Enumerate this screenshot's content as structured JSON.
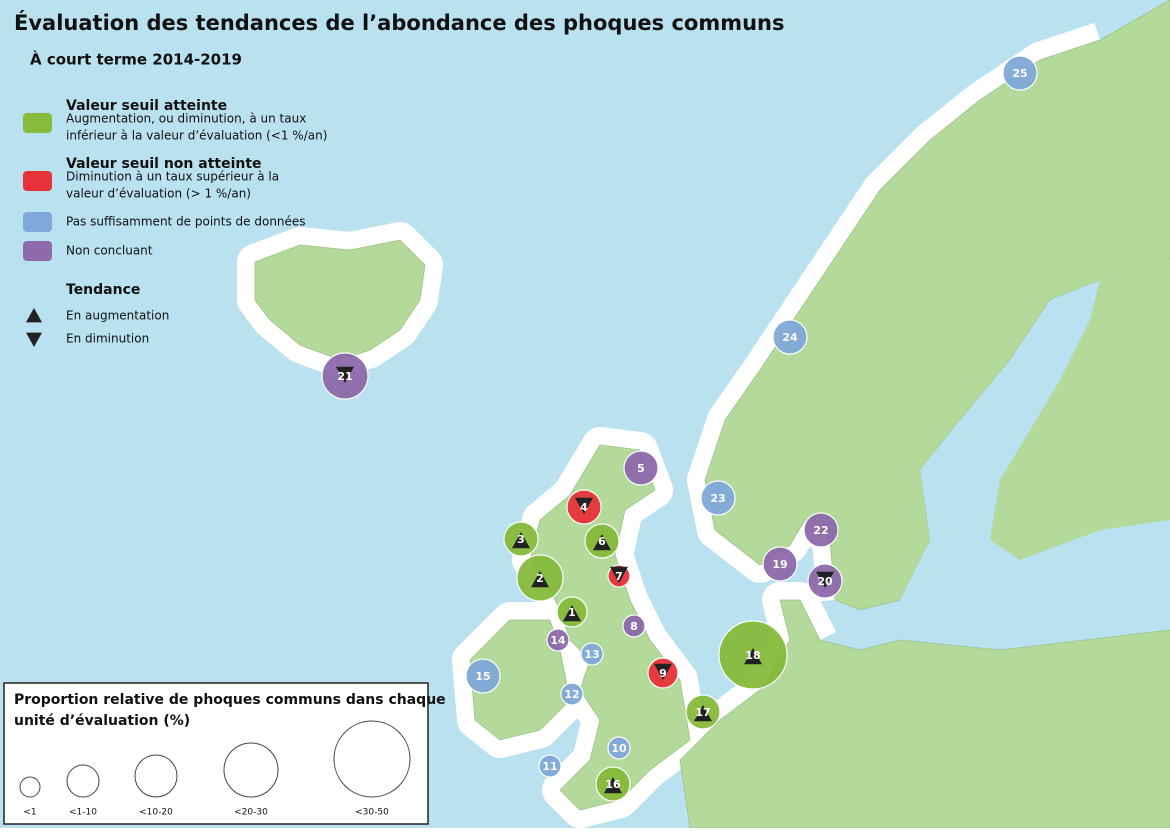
{
  "header": {
    "title": "Évaluation des tendances de l’abondance des phoques communs",
    "subtitle": "À court terme 2014-2019"
  },
  "legend": {
    "categories": [
      {
        "title": "Valeur seuil atteinte",
        "description": [
          "Augmentation, ou diminution, à un taux",
          "inférieur à la valeur d’évaluation (<1 %/an)"
        ],
        "color": "#86bb3c"
      },
      {
        "title": "Valeur seuil non atteinte",
        "description": [
          "Diminution à un taux supérieur à la",
          "valeur d’évaluation (> 1 %/an)"
        ],
        "color": "#e8323a"
      },
      {
        "title": null,
        "description": [
          "Pas suffisamment de points de données"
        ],
        "color": "#80a9d9"
      },
      {
        "title": null,
        "description": [
          "Non concluant"
        ],
        "color": "#8d6aaa"
      }
    ],
    "trend_title": "Tendance",
    "trends": [
      "En augmentation",
      "En diminution"
    ]
  },
  "size_legend": {
    "title": [
      "Proportion relative de phoques communs dans chaque",
      "unité d’évaluation (%)"
    ],
    "sizes": [
      "<1",
      "<1-10",
      "<10-20",
      "<20-30",
      "<30-50"
    ]
  },
  "units": [
    {
      "label": "1",
      "category": 0,
      "trend": 0,
      "size": 1
    },
    {
      "label": "2",
      "category": 0,
      "trend": 0,
      "size": 3
    },
    {
      "label": "3",
      "category": 0,
      "trend": 0,
      "size": 2
    },
    {
      "label": "4",
      "category": 1,
      "trend": 1,
      "size": 2
    },
    {
      "label": "5",
      "category": 3,
      "trend": null,
      "size": 2
    },
    {
      "label": "6",
      "category": 0,
      "trend": 0,
      "size": 2
    },
    {
      "label": "7",
      "category": 1,
      "trend": 1,
      "size": 0
    },
    {
      "label": "8",
      "category": 3,
      "trend": null,
      "size": 0
    },
    {
      "label": "9",
      "category": 1,
      "trend": 1,
      "size": 1
    },
    {
      "label": "10",
      "category": 2,
      "trend": null,
      "size": 0
    },
    {
      "label": "11",
      "category": 2,
      "trend": null,
      "size": 0
    },
    {
      "label": "12",
      "category": 2,
      "trend": null,
      "size": 0
    },
    {
      "label": "13",
      "category": 2,
      "trend": null,
      "size": 0
    },
    {
      "label": "14",
      "category": 3,
      "trend": null,
      "size": 0
    },
    {
      "label": "15",
      "category": 2,
      "trend": null,
      "size": 2
    },
    {
      "label": "16",
      "category": 0,
      "trend": 0,
      "size": 2
    },
    {
      "label": "17",
      "category": 0,
      "trend": 0,
      "size": 2
    },
    {
      "label": "18",
      "category": 0,
      "trend": 0,
      "size": 4
    },
    {
      "label": "19",
      "category": 3,
      "trend": null,
      "size": 2
    },
    {
      "label": "20",
      "category": 3,
      "trend": 1,
      "size": 2
    },
    {
      "label": "21",
      "category": 3,
      "trend": 1,
      "size": 3
    },
    {
      "label": "22",
      "category": 3,
      "trend": null,
      "size": 2
    },
    {
      "label": "23",
      "category": 2,
      "trend": null,
      "size": 2
    },
    {
      "label": "24",
      "category": 2,
      "trend": null,
      "size": 2
    },
    {
      "label": "25",
      "category": 2,
      "trend": null,
      "size": 2
    }
  ]
}
